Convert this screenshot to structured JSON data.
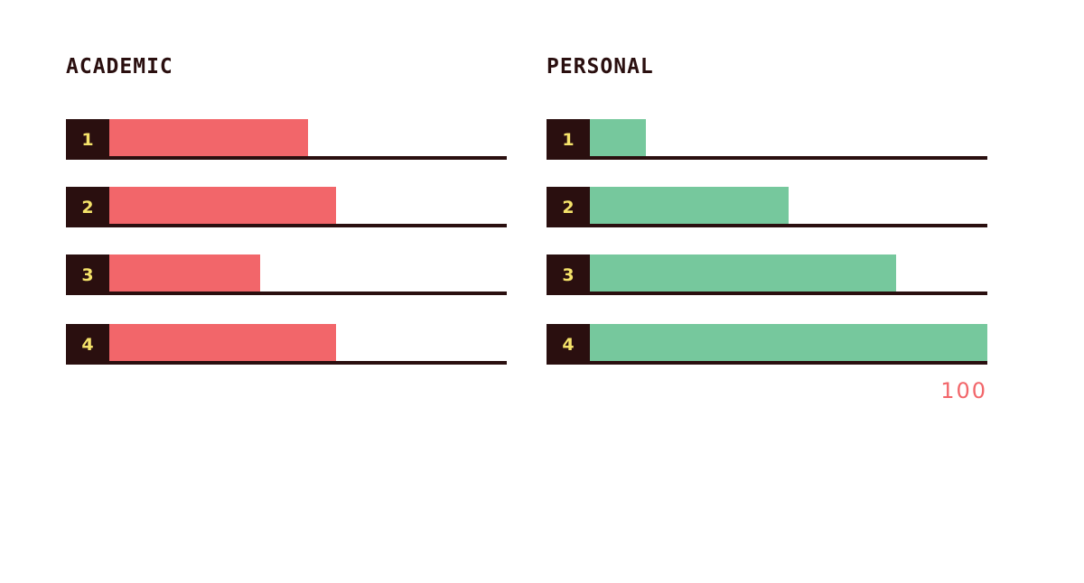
{
  "colors": {
    "academic": "#f2666a",
    "personal": "#76c89d",
    "dark": "#2a0f0f",
    "index_text": "#f5e36a",
    "scale_label": "#f2666a"
  },
  "chart_data": [
    {
      "type": "bar",
      "orientation": "horizontal",
      "title": "ACADEMIC",
      "categories": [
        "1",
        "2",
        "3",
        "4"
      ],
      "values": [
        50,
        57,
        38,
        57
      ],
      "xlim": [
        0,
        100
      ],
      "grid": false,
      "legend": "none"
    },
    {
      "type": "bar",
      "orientation": "horizontal",
      "title": "PERSONAL",
      "categories": [
        "1",
        "2",
        "3",
        "4"
      ],
      "values": [
        14,
        50,
        77,
        100
      ],
      "xlim": [
        0,
        100
      ],
      "grid": false,
      "legend": "none",
      "scale_label": "100"
    }
  ]
}
